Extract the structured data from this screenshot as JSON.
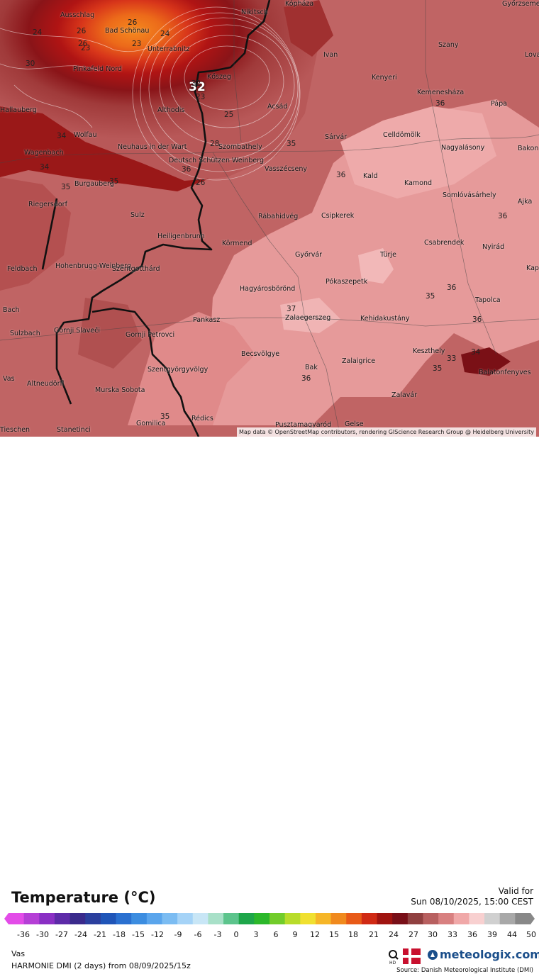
{
  "map": {
    "attribution": "Map data © OpenStreetMap contributors, rendering GIScience Research Group @ Heidelberg University",
    "places": [
      {
        "name": "Ausschlag"
      },
      {
        "name": "Bad Schönau"
      },
      {
        "name": "Unterrabnitz"
      },
      {
        "name": "Nikitsch"
      },
      {
        "name": "Kópháza"
      },
      {
        "name": "Győrzsemen"
      },
      {
        "name": "Ivan"
      },
      {
        "name": "Szany"
      },
      {
        "name": "Kenyeri"
      },
      {
        "name": "Kemenesháza"
      },
      {
        "name": "Pápa"
      },
      {
        "name": "Pinkafeld Nord"
      },
      {
        "name": "Kőszeg"
      },
      {
        "name": "Althodis"
      },
      {
        "name": "Acsád"
      },
      {
        "name": "Wolfau"
      },
      {
        "name": "Neuhaus in der Wart"
      },
      {
        "name": "Deutsch Schützen Weinberg"
      },
      {
        "name": "Szombathely"
      },
      {
        "name": "Vasszécseny"
      },
      {
        "name": "Sárvár"
      },
      {
        "name": "Celldömölk"
      },
      {
        "name": "Nagyalásony"
      },
      {
        "name": "Kald"
      },
      {
        "name": "Kamond"
      },
      {
        "name": "Somlóvásárhely"
      },
      {
        "name": "Ajka"
      },
      {
        "name": "Burgauberg"
      },
      {
        "name": "Riegersdorf"
      },
      {
        "name": "Sulz"
      },
      {
        "name": "Rábahidvég"
      },
      {
        "name": "Csipkerek"
      },
      {
        "name": "Heiligenbrunn"
      },
      {
        "name": "Körmend"
      },
      {
        "name": "Győrvár"
      },
      {
        "name": "Türje"
      },
      {
        "name": "Csabrendek"
      },
      {
        "name": "Nyirád"
      },
      {
        "name": "Feldbach"
      },
      {
        "name": "Hohenbrugg-Weinberg"
      },
      {
        "name": "Szentgotthárd"
      },
      {
        "name": "Hagyárosbörönd"
      },
      {
        "name": "Pókaszepetk"
      },
      {
        "name": "Tapolca"
      },
      {
        "name": "Pankasz"
      },
      {
        "name": "Zalaegerszeg"
      },
      {
        "name": "Kehidakustány"
      },
      {
        "name": "Gornji Slaveči"
      },
      {
        "name": "Gornji Petrovci"
      },
      {
        "name": "Keszthely"
      },
      {
        "name": "Sulzbach"
      },
      {
        "name": "Becsvölgye"
      },
      {
        "name": "Zalaigrice"
      },
      {
        "name": "Balatonfenyves"
      },
      {
        "name": "Szentgyörgyvölgy"
      },
      {
        "name": "Bak"
      },
      {
        "name": "Altneudörfl"
      },
      {
        "name": "Murska Sobota"
      },
      {
        "name": "Zalavár"
      },
      {
        "name": "Rédics"
      },
      {
        "name": "Gomilica"
      },
      {
        "name": "Pusztamagyaród"
      },
      {
        "name": "Gelse"
      },
      {
        "name": "Stanetinci"
      },
      {
        "name": "Wagenbach"
      },
      {
        "name": "Vas"
      },
      {
        "name": "Kap"
      },
      {
        "name": "Bakon"
      },
      {
        "name": "Lova"
      },
      {
        "name": "Bach"
      },
      {
        "name": "Hallauberg"
      },
      {
        "name": "Tieschen"
      }
    ],
    "temperature_labels": [
      "24",
      "26",
      "26",
      "23",
      "24",
      "23",
      "30",
      "32",
      "23",
      "26",
      "25",
      "32",
      "28",
      "35",
      "34",
      "35",
      "36",
      "36",
      "36",
      "36",
      "37",
      "35",
      "36",
      "35",
      "34",
      "35",
      "34",
      "36",
      "35",
      "36",
      "33",
      "26"
    ]
  },
  "legend": {
    "title": "Temperature (°C)",
    "valid_label": "Valid for",
    "valid_date": "Sun 08/10/2025, 15:00 CEST",
    "ticks": [
      "-36",
      "-30",
      "-27",
      "-24",
      "-21",
      "-18",
      "-15",
      "-12",
      "-9",
      "-6",
      "-3",
      "0",
      "3",
      "6",
      "9",
      "12",
      "15",
      "18",
      "21",
      "24",
      "27",
      "30",
      "33",
      "36",
      "39",
      "44",
      "50"
    ],
    "colors": [
      "#e34ce8",
      "#b53fd6",
      "#8a2fc4",
      "#5d2aa8",
      "#3a2a8c",
      "#2b3f9e",
      "#1f55b8",
      "#2a70d0",
      "#3c8de0",
      "#5aa5ec",
      "#7bbcf2",
      "#a5d3f7",
      "#c8e6f6",
      "#a8e0c8",
      "#5cc48c",
      "#1ea64a",
      "#2cb82a",
      "#72cc2a",
      "#b8dc2a",
      "#f0e030",
      "#f6b628",
      "#f08a1e",
      "#e85a18",
      "#d02a14",
      "#a01410",
      "#780f18",
      "#904040",
      "#b86060",
      "#d88080",
      "#f0a8a8",
      "#f8d0d0",
      "#d0d0d0",
      "#a8a8a8",
      "#888888"
    ],
    "region": "Vas",
    "model": "HARMONIE DMI (2 days)  from  08/09/2025/15z",
    "brand": "meteologix.com",
    "source": "Source: Danish Meteorological Institute (DMI)"
  }
}
